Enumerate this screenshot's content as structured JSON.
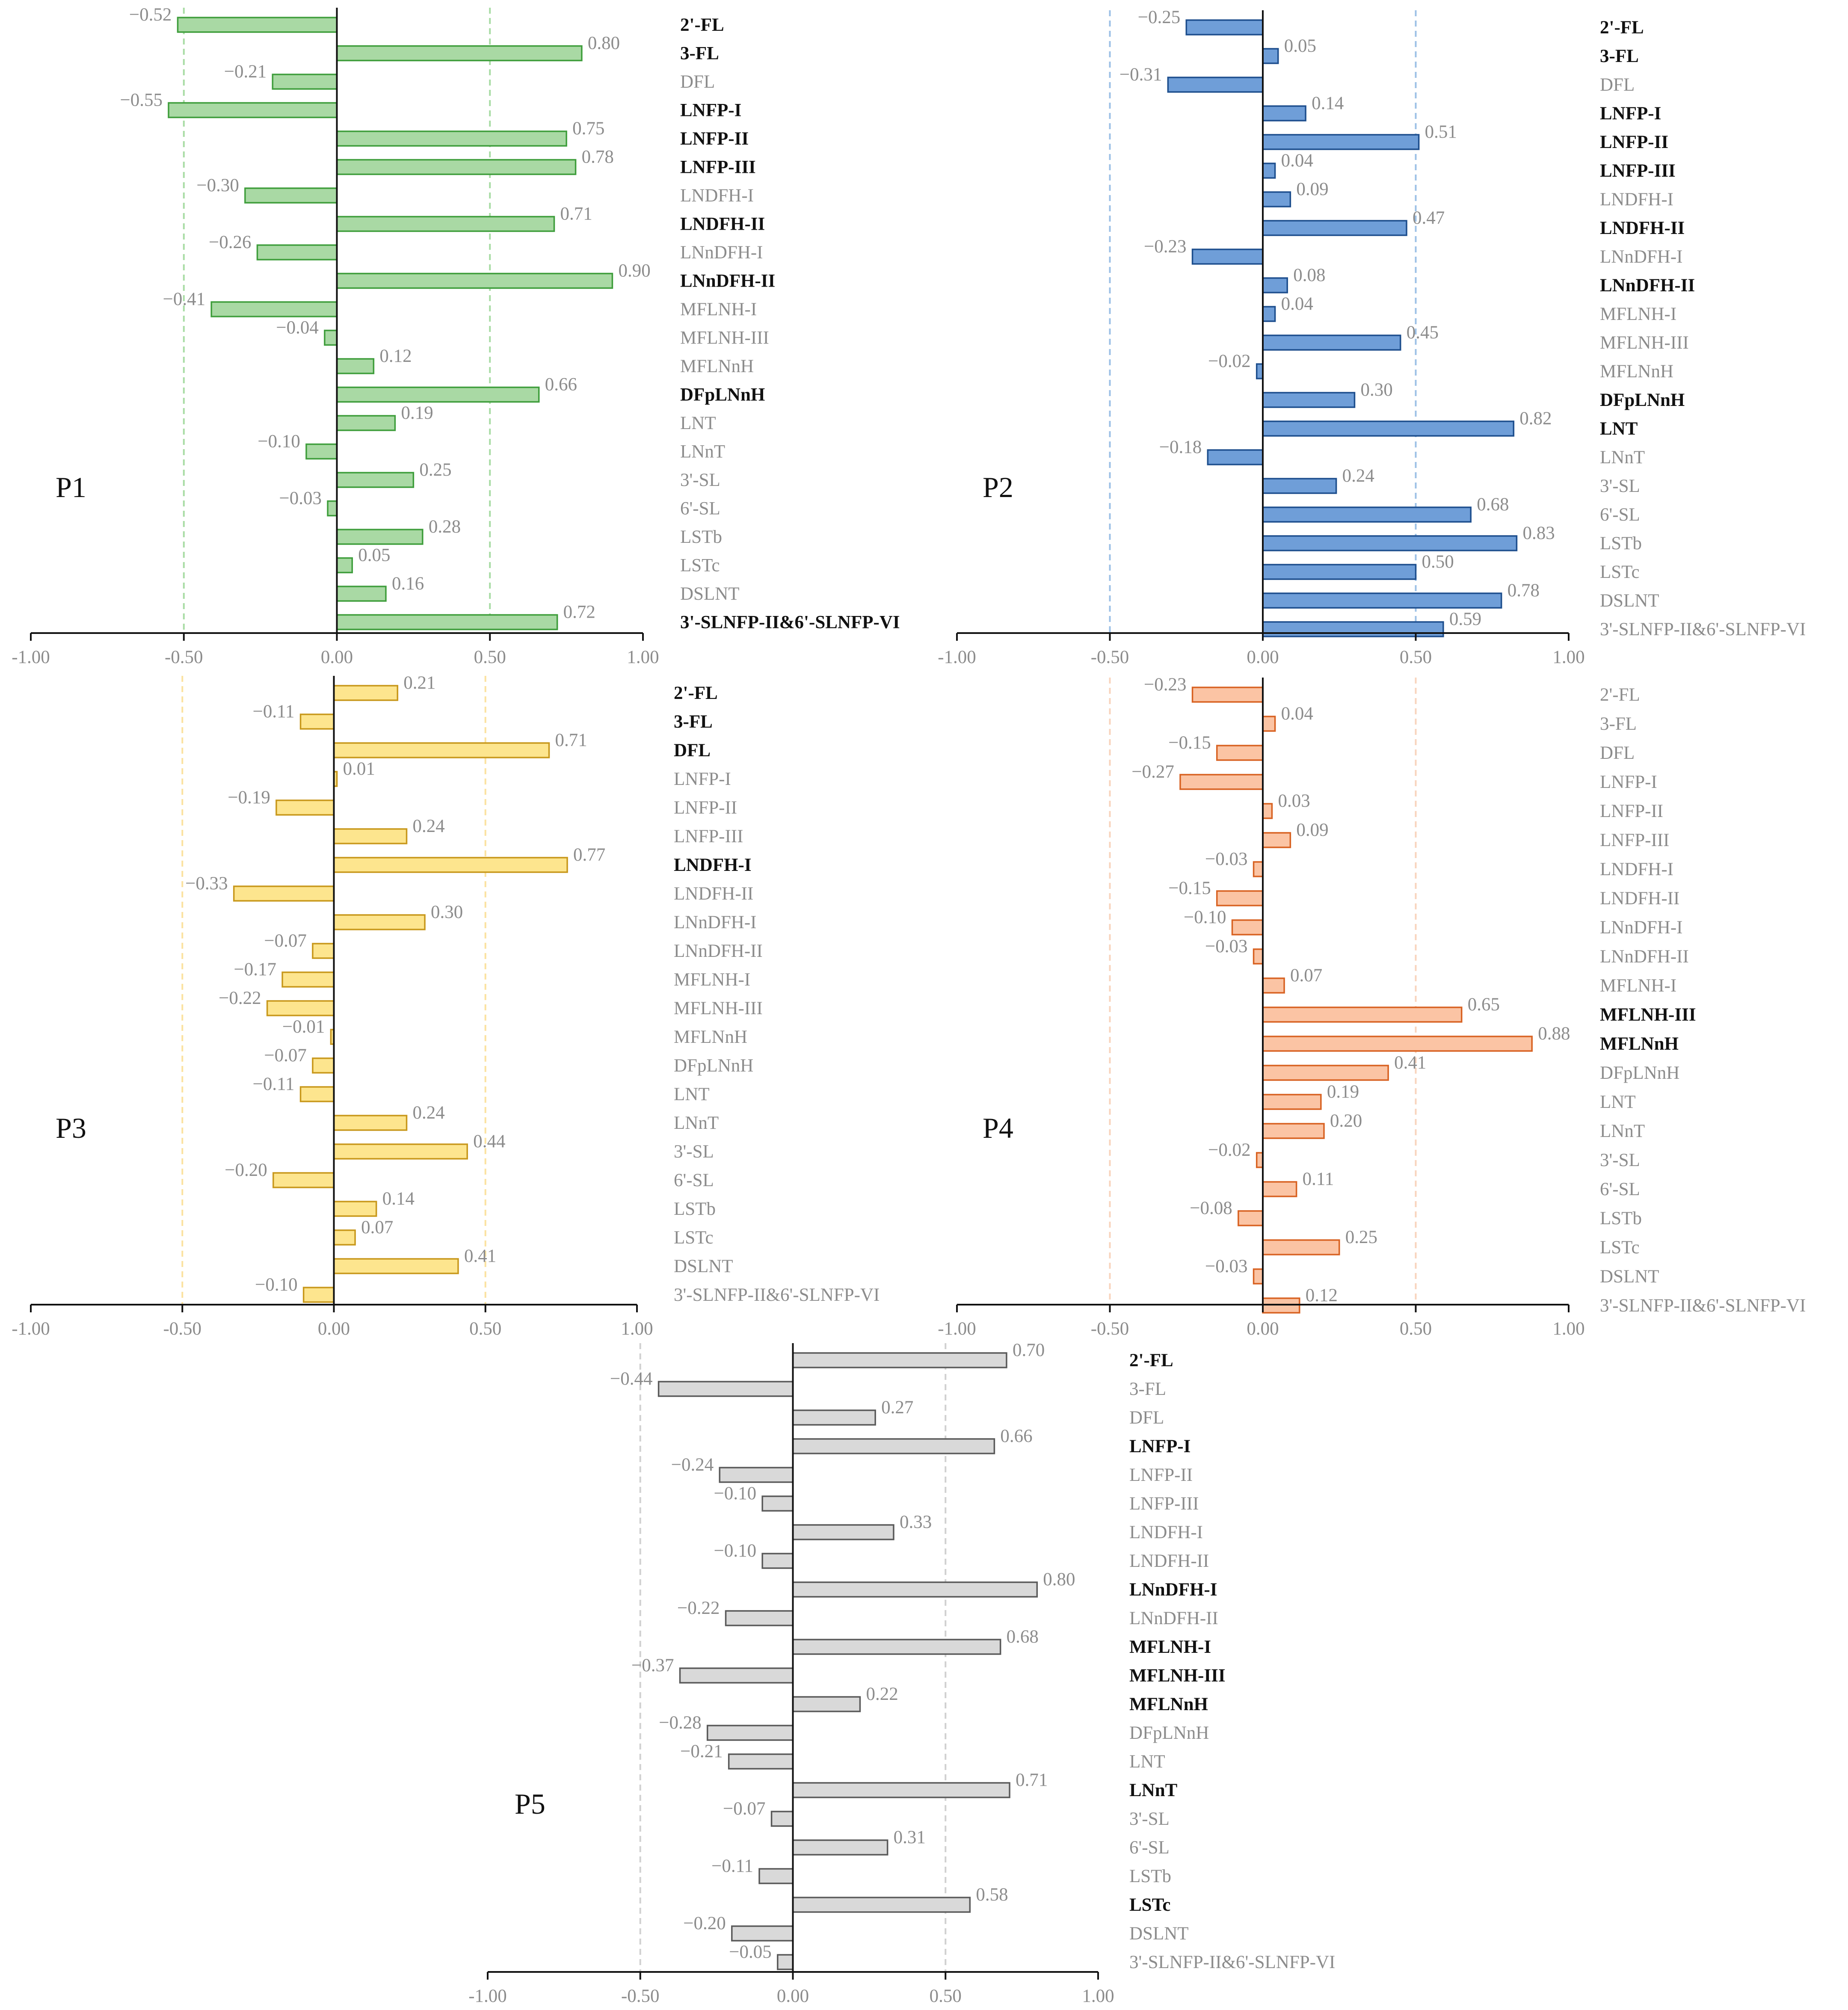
{
  "chart_data": [
    {
      "type": "bar",
      "panel_label": "P1",
      "xlim": [
        -1.0,
        1.0
      ],
      "x_ticks": [
        "-1.00",
        "-0.50",
        "0.00",
        "0.50",
        "1.00"
      ],
      "reference_lines": [
        -0.5,
        0.5
      ],
      "colors": {
        "fill": "#a9d9a4",
        "stroke": "#3f9e3c",
        "ref": "#a8dca4"
      },
      "categories": [
        "2'-FL",
        "3-FL",
        "DFL",
        "LNFP-I",
        "LNFP-II",
        "LNFP-III",
        "LNDFH-I",
        "LNDFH-II",
        "LNnDFH-I",
        "LNnDFH-II",
        "MFLNH-I",
        "MFLNH-III",
        "MFLNnH",
        "DFpLNnH",
        "LNT",
        "LNnT",
        "3'-SL",
        "6'-SL",
        "LSTb",
        "LSTc",
        "DSLNT",
        "3'-SLNFP-II&6'-SLNFP-VI"
      ],
      "values": [
        -0.52,
        0.8,
        -0.21,
        -0.55,
        0.75,
        0.78,
        -0.3,
        0.71,
        -0.26,
        0.9,
        -0.41,
        -0.04,
        0.12,
        0.66,
        0.19,
        -0.1,
        0.25,
        -0.03,
        0.28,
        0.05,
        0.16,
        0.72
      ],
      "value_labels": [
        "−0.52",
        "0.80",
        "−0.21",
        "−0.55",
        "0.75",
        "0.78",
        "−0.30",
        "0.71",
        "−0.26",
        "0.90",
        "−0.41",
        "−0.04",
        "0.12",
        "0.66",
        "0.19",
        "−0.10",
        "0.25",
        "−0.03",
        "0.28",
        "0.05",
        "0.16",
        "0.72"
      ],
      "bold": [
        true,
        true,
        false,
        true,
        true,
        true,
        false,
        true,
        false,
        true,
        false,
        false,
        false,
        true,
        false,
        false,
        false,
        false,
        false,
        false,
        false,
        true
      ]
    },
    {
      "type": "bar",
      "panel_label": "P2",
      "xlim": [
        -1.0,
        1.0
      ],
      "x_ticks": [
        "-1.00",
        "-0.50",
        "0.00",
        "0.50",
        "1.00"
      ],
      "reference_lines": [
        -0.5,
        0.5
      ],
      "colors": {
        "fill": "#6f9ed8",
        "stroke": "#1e4f8e",
        "ref": "#9cc0e6"
      },
      "categories": [
        "2'-FL",
        "3-FL",
        "DFL",
        "LNFP-I",
        "LNFP-II",
        "LNFP-III",
        "LNDFH-I",
        "LNDFH-II",
        "LNnDFH-I",
        "LNnDFH-II",
        "MFLNH-I",
        "MFLNH-III",
        "MFLNnH",
        "DFpLNnH",
        "LNT",
        "LNnT",
        "3'-SL",
        "6'-SL",
        "LSTb",
        "LSTc",
        "DSLNT",
        "3'-SLNFP-II&6'-SLNFP-VI"
      ],
      "values": [
        -0.25,
        0.05,
        -0.31,
        0.14,
        0.51,
        0.04,
        0.09,
        0.47,
        -0.23,
        0.08,
        0.04,
        0.45,
        -0.02,
        0.3,
        0.82,
        -0.18,
        0.24,
        0.68,
        0.83,
        0.5,
        0.78,
        0.59
      ],
      "value_labels": [
        "−0.25",
        "0.05",
        "−0.31",
        "0.14",
        "0.51",
        "0.04",
        "0.09",
        "0.47",
        "−0.23",
        "0.08",
        "0.04",
        "0.45",
        "−0.02",
        "0.30",
        "0.82",
        "−0.18",
        "0.24",
        "0.68",
        "0.83",
        "0.50",
        "0.78",
        "0.59"
      ],
      "bold": [
        true,
        true,
        false,
        true,
        true,
        true,
        false,
        true,
        false,
        true,
        false,
        false,
        false,
        true,
        true,
        false,
        false,
        false,
        false,
        false,
        false,
        false
      ]
    },
    {
      "type": "bar",
      "panel_label": "P3",
      "xlim": [
        -1.0,
        1.0
      ],
      "x_ticks": [
        "-1.00",
        "-0.50",
        "0.00",
        "0.50",
        "1.00"
      ],
      "reference_lines": [
        -0.5,
        0.5
      ],
      "colors": {
        "fill": "#fde58e",
        "stroke": "#c8981c",
        "ref": "#fbe2a0"
      },
      "categories": [
        "2'-FL",
        "3-FL",
        "DFL",
        "LNFP-I",
        "LNFP-II",
        "LNFP-III",
        "LNDFH-I",
        "LNDFH-II",
        "LNnDFH-I",
        "LNnDFH-II",
        "MFLNH-I",
        "MFLNH-III",
        "MFLNnH",
        "DFpLNnH",
        "LNT",
        "LNnT",
        "3'-SL",
        "6'-SL",
        "LSTb",
        "LSTc",
        "DSLNT",
        "3'-SLNFP-II&6'-SLNFP-VI"
      ],
      "values": [
        0.21,
        -0.11,
        0.71,
        0.01,
        -0.19,
        0.24,
        0.77,
        -0.33,
        0.3,
        -0.07,
        -0.17,
        -0.22,
        -0.01,
        -0.07,
        -0.11,
        0.24,
        0.44,
        -0.2,
        0.14,
        0.07,
        0.41,
        -0.1
      ],
      "value_labels": [
        "0.21",
        "−0.11",
        "0.71",
        "0.01",
        "−0.19",
        "0.24",
        "0.77",
        "−0.33",
        "0.30",
        "−0.07",
        "−0.17",
        "−0.22",
        "−0.01",
        "−0.07",
        "−0.11",
        "0.24",
        "0.44",
        "−0.20",
        "0.14",
        "0.07",
        "0.41",
        "−0.10"
      ],
      "bold": [
        true,
        true,
        true,
        false,
        false,
        false,
        true,
        false,
        false,
        false,
        false,
        false,
        false,
        false,
        false,
        false,
        false,
        false,
        false,
        false,
        false,
        false
      ]
    },
    {
      "type": "bar",
      "panel_label": "P4",
      "xlim": [
        -1.0,
        1.0
      ],
      "x_ticks": [
        "-1.00",
        "-0.50",
        "0.00",
        "0.50",
        "1.00"
      ],
      "reference_lines": [
        -0.5,
        0.5
      ],
      "colors": {
        "fill": "#fbc4a4",
        "stroke": "#d86222",
        "ref": "#f8d4bd"
      },
      "categories": [
        "2'-FL",
        "3-FL",
        "DFL",
        "LNFP-I",
        "LNFP-II",
        "LNFP-III",
        "LNDFH-I",
        "LNDFH-II",
        "LNnDFH-I",
        "LNnDFH-II",
        "MFLNH-I",
        "MFLNH-III",
        "MFLNnH",
        "DFpLNnH",
        "LNT",
        "LNnT",
        "3'-SL",
        "6'-SL",
        "LSTb",
        "LSTc",
        "DSLNT",
        "3'-SLNFP-II&6'-SLNFP-VI"
      ],
      "values": [
        -0.23,
        0.04,
        -0.15,
        -0.27,
        0.03,
        0.09,
        -0.03,
        -0.15,
        -0.1,
        -0.03,
        0.07,
        0.65,
        0.88,
        0.41,
        0.19,
        0.2,
        -0.02,
        0.11,
        -0.08,
        0.25,
        -0.03,
        0.12
      ],
      "value_labels": [
        "−0.23",
        "0.04",
        "−0.15",
        "−0.27",
        "0.03",
        "0.09",
        "−0.03",
        "−0.15",
        "−0.10",
        "−0.03",
        "0.07",
        "0.65",
        "0.88",
        "0.41",
        "0.19",
        "0.20",
        "−0.02",
        "0.11",
        "−0.08",
        "0.25",
        "−0.03",
        "0.12"
      ],
      "bold": [
        false,
        false,
        false,
        false,
        false,
        false,
        false,
        false,
        false,
        false,
        false,
        true,
        true,
        false,
        false,
        false,
        false,
        false,
        false,
        false,
        false,
        false
      ]
    },
    {
      "type": "bar",
      "panel_label": "P5",
      "xlim": [
        -1.0,
        1.0
      ],
      "x_ticks": [
        "-1.00",
        "-0.50",
        "0.00",
        "0.50",
        "1.00"
      ],
      "reference_lines": [
        -0.5,
        0.5
      ],
      "colors": {
        "fill": "#d9d9d9",
        "stroke": "#5a5a5a",
        "ref": "#d0d0d0"
      },
      "categories": [
        "2'-FL",
        "3-FL",
        "DFL",
        "LNFP-I",
        "LNFP-II",
        "LNFP-III",
        "LNDFH-I",
        "LNDFH-II",
        "LNnDFH-I",
        "LNnDFH-II",
        "MFLNH-I",
        "MFLNH-III",
        "MFLNnH",
        "DFpLNnH",
        "LNT",
        "LNnT",
        "3'-SL",
        "6'-SL",
        "LSTb",
        "LSTc",
        "DSLNT",
        "3'-SLNFP-II&6'-SLNFP-VI"
      ],
      "values": [
        0.7,
        -0.44,
        0.27,
        0.66,
        -0.24,
        -0.1,
        0.33,
        -0.1,
        0.8,
        -0.22,
        0.68,
        -0.37,
        0.22,
        -0.28,
        -0.21,
        0.71,
        -0.07,
        0.31,
        -0.11,
        0.58,
        -0.2,
        -0.05
      ],
      "value_labels": [
        "0.70",
        "−0.44",
        "0.27",
        "0.66",
        "−0.24",
        "−0.10",
        "0.33",
        "−0.10",
        "0.80",
        "−0.22",
        "0.68",
        "−0.37",
        "0.22",
        "−0.28",
        "−0.21",
        "0.71",
        "−0.07",
        "0.31",
        "−0.11",
        "0.58",
        "−0.20",
        "−0.05"
      ],
      "bold": [
        true,
        false,
        false,
        true,
        false,
        false,
        false,
        false,
        true,
        false,
        true,
        true,
        true,
        false,
        false,
        true,
        false,
        false,
        false,
        true,
        false,
        false
      ]
    }
  ]
}
